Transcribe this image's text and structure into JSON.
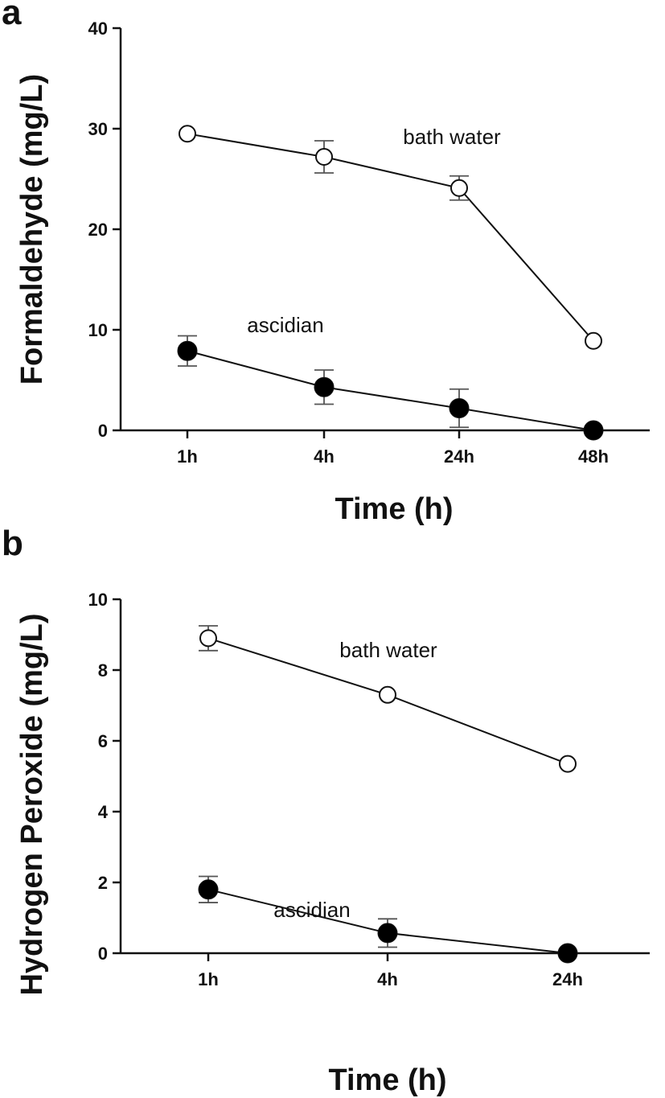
{
  "chart_data": [
    {
      "panel_label": "a",
      "type": "line",
      "x_categories": [
        "1h",
        "4h",
        "24h",
        "48h"
      ],
      "xlabel": "Time (h)",
      "ylabel": "Formaldehyde (mg/L)",
      "ylim": [
        0,
        40
      ],
      "yticks": [
        0,
        10,
        20,
        30,
        40
      ],
      "ytick_labels": [
        "0",
        "10",
        "20",
        "30",
        "40"
      ],
      "grid": false,
      "series": [
        {
          "name": "bath water",
          "marker": "open-circle",
          "values": [
            29.5,
            27.2,
            24.1,
            8.9
          ],
          "errors": [
            null,
            1.6,
            1.2,
            null
          ]
        },
        {
          "name": "ascidian",
          "marker": "filled-circle",
          "values": [
            7.9,
            4.3,
            2.2,
            0.0
          ],
          "errors": [
            1.5,
            1.7,
            1.9,
            null
          ]
        }
      ]
    },
    {
      "panel_label": "b",
      "type": "line",
      "x_categories": [
        "1h",
        "4h",
        "24h"
      ],
      "xlabel": "Time (h)",
      "ylabel": "Hydrogen Peroxide (mg/L)",
      "ylim": [
        0,
        10
      ],
      "yticks": [
        0,
        2,
        4,
        6,
        8,
        10
      ],
      "ytick_labels": [
        "0",
        "2",
        "4",
        "6",
        "8",
        "10"
      ],
      "grid": false,
      "series": [
        {
          "name": "bath water",
          "marker": "open-circle",
          "values": [
            8.9,
            7.3,
            5.35
          ],
          "errors": [
            0.35,
            null,
            null
          ]
        },
        {
          "name": "ascidian",
          "marker": "filled-circle",
          "values": [
            1.8,
            0.57,
            0.0
          ],
          "errors": [
            0.37,
            0.4,
            null
          ]
        }
      ]
    }
  ]
}
